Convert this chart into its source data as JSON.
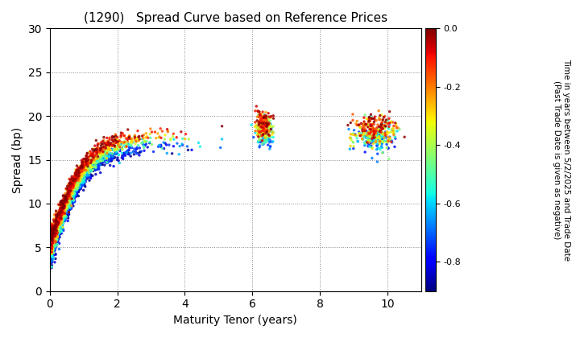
{
  "title": "(1290)   Spread Curve based on Reference Prices",
  "xlabel": "Maturity Tenor (years)",
  "ylabel": "Spread (bp)",
  "colorbar_label": "Time in years between 5/2/2025 and Trade Date\n(Past Trade Date is given as negative)",
  "xlim": [
    0,
    11
  ],
  "ylim": [
    0,
    30
  ],
  "xticks": [
    0,
    2,
    4,
    6,
    8,
    10
  ],
  "yticks": [
    0,
    5,
    10,
    15,
    20,
    25,
    30
  ],
  "cbar_ticks": [
    0.0,
    -0.2,
    -0.4,
    -0.6,
    -0.8
  ],
  "colormap": "jet",
  "color_vmin": -0.9,
  "color_vmax": 0.0,
  "background_color": "#ffffff",
  "grid_color": "#888888",
  "point_size": 6,
  "point_alpha": 0.85
}
